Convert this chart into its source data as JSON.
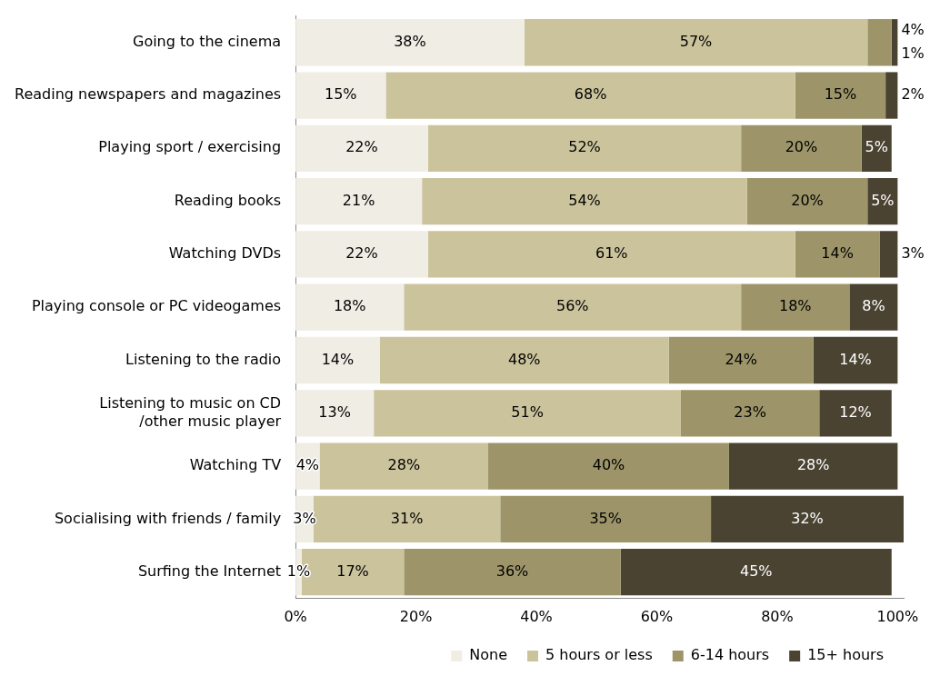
{
  "chart_data": {
    "type": "bar",
    "orientation": "horizontal",
    "stacked": true,
    "categories": [
      "Going to the cinema",
      "Reading newspapers and magazines",
      "Playing sport / exercising",
      "Reading books",
      "Watching DVDs",
      "Playing console or PC videogames",
      "Listening to the radio",
      "Listening to music on CD /other music player",
      "Watching TV",
      "Socialising with friends / family",
      "Surfing the Internet"
    ],
    "series": [
      {
        "name": "None",
        "color": "#efede4",
        "values": [
          38,
          15,
          22,
          21,
          22,
          18,
          14,
          13,
          4,
          3,
          1
        ],
        "value_labels": [
          "38%",
          "15%",
          "22%",
          "21%",
          "22%",
          "18%",
          "14%",
          "13%",
          "4%",
          "3%",
          "1%"
        ]
      },
      {
        "name": "5 hours or less",
        "color": "#cbc39c",
        "values": [
          57,
          68,
          52,
          54,
          61,
          56,
          48,
          51,
          28,
          31,
          17
        ],
        "value_labels": [
          "57%",
          "68%",
          "52%",
          "54%",
          "61%",
          "56%",
          "48%",
          "51%",
          "28%",
          "31%",
          "17%"
        ]
      },
      {
        "name": "6-14 hours",
        "color": "#9d9569",
        "values": [
          4,
          15,
          20,
          20,
          14,
          18,
          24,
          23,
          40,
          35,
          36
        ],
        "value_labels": [
          "4%",
          "15%",
          "20%",
          "20%",
          "14%",
          "18%",
          "24%",
          "23%",
          "40%",
          "35%",
          "36%"
        ]
      },
      {
        "name": "15+ hours",
        "color": "#4a4332",
        "values": [
          1,
          2,
          5,
          5,
          3,
          8,
          14,
          12,
          28,
          32,
          45
        ],
        "value_labels": [
          "1%",
          "2%",
          "5%",
          "5%",
          "3%",
          "8%",
          "14%",
          "12%",
          "28%",
          "32%",
          "45%"
        ]
      }
    ],
    "xlim": [
      0,
      101
    ],
    "xticks": [
      {
        "value": 0,
        "label": "0%"
      },
      {
        "value": 20,
        "label": "20%"
      },
      {
        "value": 40,
        "label": "40%"
      },
      {
        "value": 60,
        "label": "60%"
      },
      {
        "value": 80,
        "label": "80%"
      },
      {
        "value": 100,
        "label": "100%"
      }
    ],
    "legend": "bottom",
    "grid": false
  }
}
